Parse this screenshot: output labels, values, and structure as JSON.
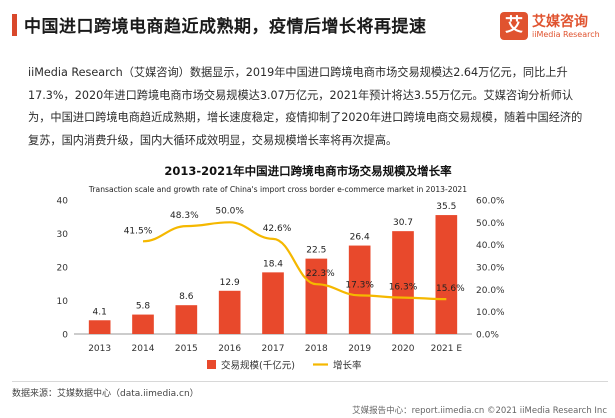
{
  "header": {
    "title": "中国进口跨境电商趋近成熟期，疫情后增长将再提速"
  },
  "logo": {
    "mark": "艾",
    "name": "艾媒咨询",
    "sub": "iiMedia Research"
  },
  "body_text": "iiMedia Research（艾媒咨询）数据显示，2019年中国进口跨境电商市场交易规模达2.64万亿元，同比上升17.3%，2020年进口跨境电商市场交易规模达3.07万亿元，2021年预计将达3.55万亿元。艾媒咨询分析师认为，中国进口跨境电商趋近成熟期，增长速度稳定，疫情抑制了2020年进口跨境电商交易规模，随着中国经济的复苏，国内消费升级，国内大循环成效明显，交易规模增长率将再次提高。",
  "colors": {
    "bar": "#e8492c",
    "line": "#f5b800",
    "accent": "#d9482b"
  },
  "chart_data": {
    "type": "bar",
    "title": "2013-2021年中国进口跨境电商市场交易规模及增长率",
    "subtitle": "Transaction scale and growth rate of China's import cross border e-commerce market in 2013-2021",
    "categories": [
      "2013",
      "2014",
      "2015",
      "2016",
      "2017",
      "2018",
      "2019",
      "2020",
      "2021 E"
    ],
    "series": [
      {
        "name": "交易规模(千亿元)",
        "type": "bar",
        "axis": "left",
        "values": [
          4.1,
          5.8,
          8.6,
          12.9,
          18.4,
          22.5,
          26.4,
          30.7,
          35.5
        ],
        "labels": [
          "4.1",
          "5.8",
          "8.6",
          "12.9",
          "18.4",
          "22.5",
          "26.4",
          "30.7",
          "35.5"
        ]
      },
      {
        "name": "增长率",
        "type": "line",
        "axis": "right",
        "values": [
          null,
          41.5,
          48.3,
          50.0,
          42.6,
          22.3,
          17.3,
          16.3,
          15.6
        ],
        "labels": [
          "",
          "41.5%",
          "48.3%",
          "50.0%",
          "42.6%",
          "22.3%",
          "17.3%",
          "16.3%",
          "15.6%"
        ]
      }
    ],
    "ylim_left": [
      0,
      40
    ],
    "yticks_left": [
      "0",
      "10",
      "20",
      "30",
      "40"
    ],
    "ylim_right": [
      0,
      60
    ],
    "yticks_right": [
      "0.0%",
      "10.0%",
      "20.0%",
      "30.0%",
      "40.0%",
      "50.0%",
      "60.0%"
    ],
    "grid": false,
    "legend": "bottom-center"
  },
  "footer": {
    "source": "数据来源：艾媒数据中心（data.iimedia.cn）",
    "report": "艾媒报告中心：report.iimedia.cn  ©2021  iiMedia Research  Inc"
  }
}
